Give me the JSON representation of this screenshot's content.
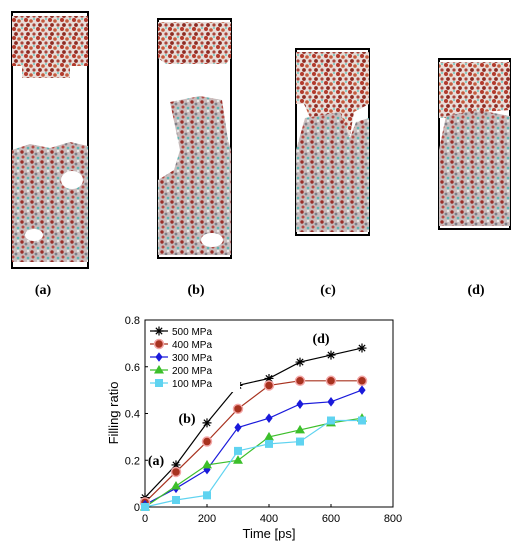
{
  "snapshot_labels": [
    "(a)",
    "(b)",
    "(c)",
    "(d)"
  ],
  "chart_data": {
    "type": "line",
    "xlabel": "Time [ps]",
    "ylabel": "Filling ratio",
    "xlim": [
      0,
      800
    ],
    "ylim": [
      0,
      0.8
    ],
    "xticks": [
      0,
      200,
      400,
      600,
      800
    ],
    "yticks": [
      0,
      0.2,
      0.4,
      0.6,
      0.8
    ],
    "legend_position": "top-left",
    "x": [
      0,
      100,
      200,
      300,
      400,
      500,
      600,
      700
    ],
    "series": [
      {
        "name": "500 MPa",
        "color": "#000000",
        "marker": "star",
        "values": [
          0.04,
          0.18,
          0.36,
          0.52,
          0.55,
          0.62,
          0.65,
          0.68
        ]
      },
      {
        "name": "400 MPa",
        "color": "#a8321f",
        "marker": "circle",
        "values": [
          0.02,
          0.15,
          0.28,
          0.42,
          0.52,
          0.54,
          0.54,
          0.54
        ]
      },
      {
        "name": "300 MPa",
        "color": "#1a1adb",
        "marker": "diamond",
        "values": [
          0.01,
          0.08,
          0.16,
          0.34,
          0.38,
          0.44,
          0.45,
          0.5
        ]
      },
      {
        "name": "200 MPa",
        "color": "#3cbf2a",
        "marker": "triangle",
        "values": [
          0.0,
          0.09,
          0.18,
          0.2,
          0.3,
          0.33,
          0.36,
          0.38
        ]
      },
      {
        "name": "100 MPa",
        "color": "#5fd3f0",
        "marker": "square",
        "values": [
          0.0,
          0.03,
          0.05,
          0.24,
          0.27,
          0.28,
          0.37,
          0.37
        ]
      }
    ],
    "annotations": [
      {
        "text": "(a)",
        "x": 100,
        "y": 0.18
      },
      {
        "text": "(b)",
        "x": 200,
        "y": 0.36
      },
      {
        "text": "(c)",
        "x": 300,
        "y": 0.52
      },
      {
        "text": "(d)",
        "x": 600,
        "y": 0.65
      }
    ]
  }
}
